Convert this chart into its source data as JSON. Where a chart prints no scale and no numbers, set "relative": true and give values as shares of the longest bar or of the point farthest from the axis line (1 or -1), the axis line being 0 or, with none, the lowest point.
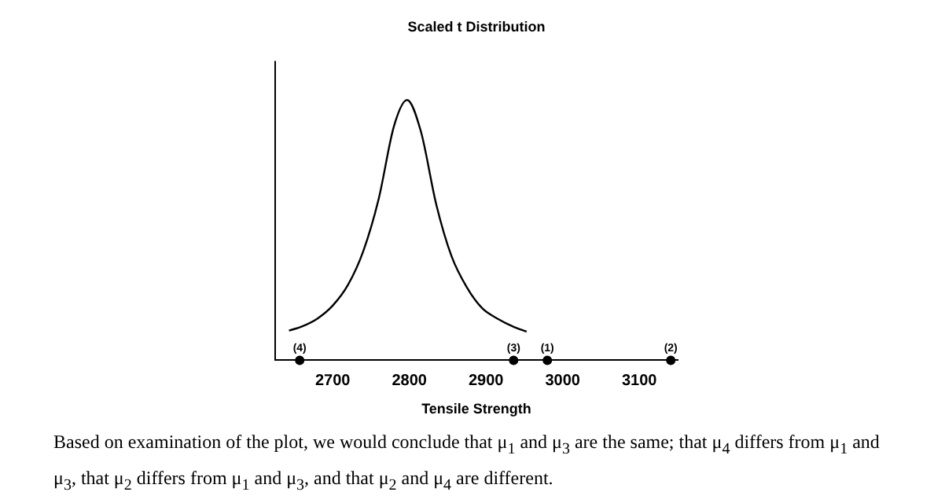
{
  "chart_data": {
    "type": "line",
    "title": "Scaled t Distribution",
    "xlabel": "Tensile Strength",
    "relative": true,
    "xlim": [
      2625,
      3150
    ],
    "xticks": [
      2700,
      2800,
      2900,
      3000,
      3100
    ],
    "grid": false,
    "legend": false,
    "series": [
      {
        "type": "line",
        "color": "#000000",
        "marker": "none",
        "x": [
          2643,
          2660,
          2680,
          2700,
          2720,
          2740,
          2760,
          2780,
          2797,
          2815,
          2835,
          2855,
          2875,
          2895,
          2915,
          2935,
          2953
        ],
        "values": [
          0.114,
          0.13,
          0.16,
          0.21,
          0.29,
          0.42,
          0.62,
          0.9,
          1,
          0.88,
          0.6,
          0.4,
          0.28,
          0.2,
          0.16,
          0.13,
          0.11
        ]
      },
      {
        "type": "scatter",
        "color": "#000000",
        "marker": "circle",
        "x": [
          2980,
          3141,
          2936,
          2657
        ],
        "values": [
          0,
          0,
          0,
          0
        ]
      }
    ],
    "annotations": [
      {
        "text": "(1)",
        "x": 2980,
        "y": 0
      },
      {
        "text": "(2)",
        "x": 3141,
        "y": 0
      },
      {
        "text": "(3)",
        "x": 2936,
        "y": 0
      },
      {
        "text": "(4)",
        "x": 2657,
        "y": 0
      },
      "Based on examination of the plot, we would conclude that μ$_{1}$ and μ$_{3}$ are the same; that μ$_{4}$ differs from μ$_{1}$ and μ$_{3}$, that μ$_{2}$ differs from μ$_{1}$ and μ$_{3}$, and that μ$_{2}$ and μ$_{4}$ are different."
    ]
  }
}
